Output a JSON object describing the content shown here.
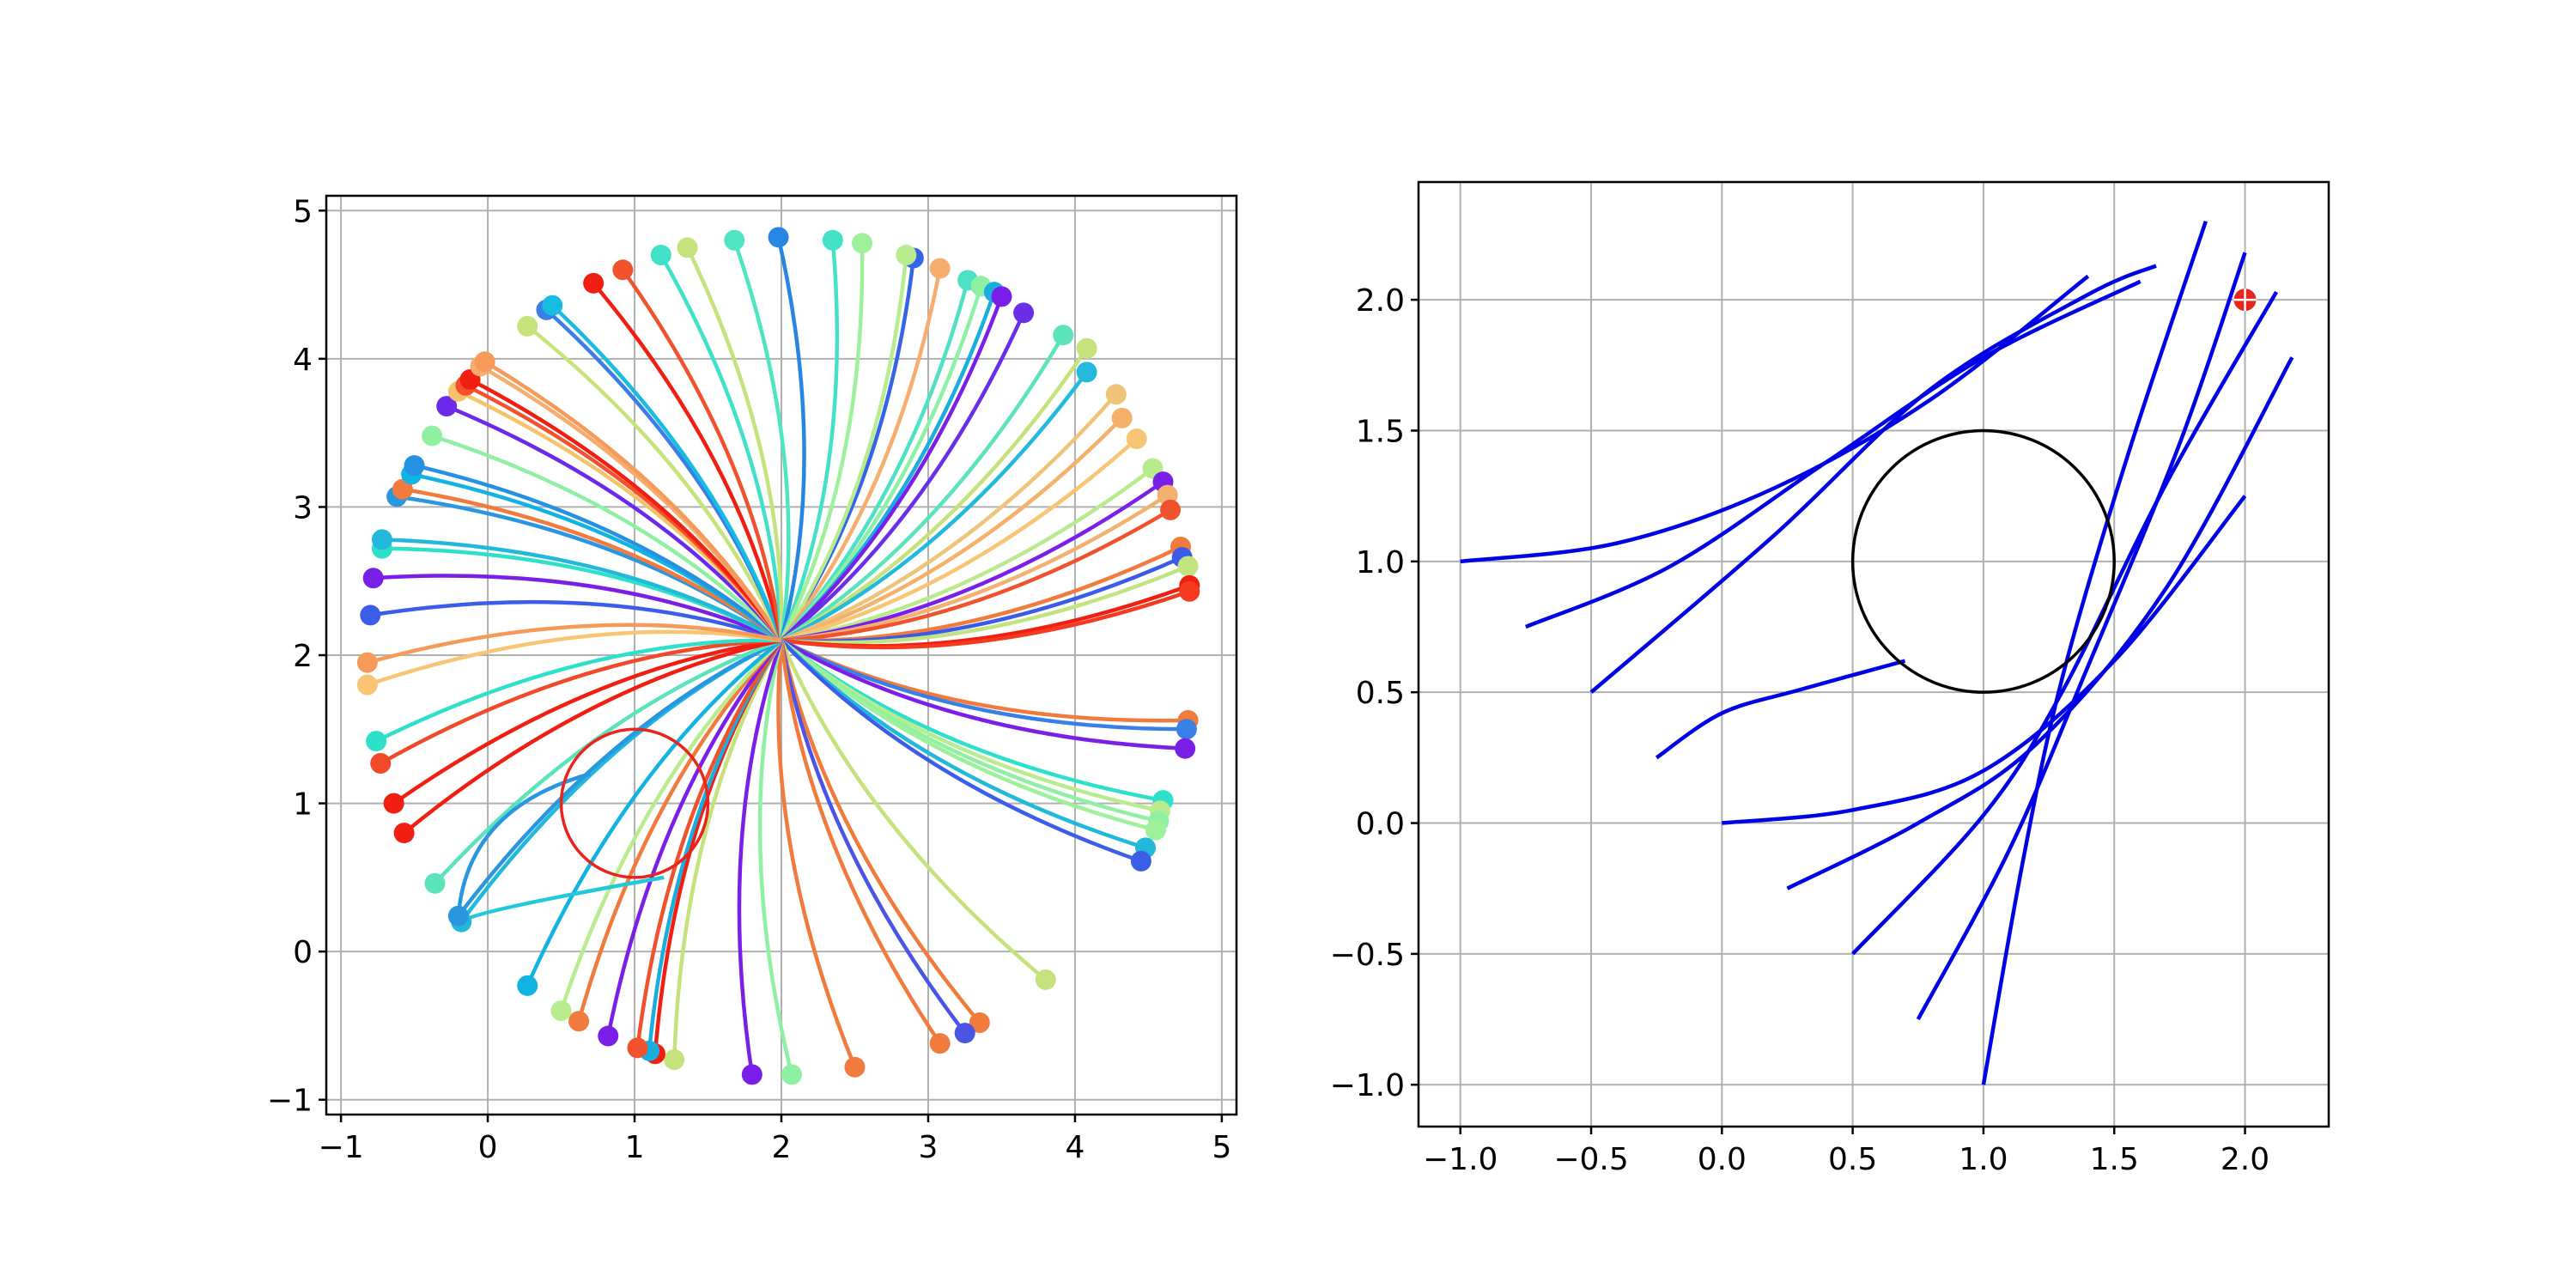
{
  "figure": {
    "background": "#ffffff"
  },
  "chart_data": [
    {
      "type": "line",
      "title": "",
      "xlabel": "",
      "ylabel": "",
      "xlim": [
        -1.1,
        5.1
      ],
      "ylim": [
        -1.1,
        5.1
      ],
      "x_ticks": [
        -1,
        0,
        1,
        2,
        3,
        4,
        5
      ],
      "x_tick_labels": [
        "−1",
        "0",
        "1",
        "2",
        "3",
        "4",
        "5"
      ],
      "y_ticks": [
        -1,
        0,
        1,
        2,
        3,
        4,
        5
      ],
      "y_tick_labels": [
        "−1",
        "0",
        "1",
        "2",
        "3",
        "4",
        "5"
      ],
      "grid": true,
      "colormap": "rainbow",
      "obstacle_circle": {
        "center": [
          1,
          1
        ],
        "radius": 0.5,
        "color": "#e8241c"
      },
      "convergence_point": [
        2,
        2.1
      ],
      "start_points": [
        {
          "x": -0.8,
          "y": 2.27,
          "color": "#3b5ee8"
        },
        {
          "x": -0.78,
          "y": 2.52,
          "color": "#7a1fe8"
        },
        {
          "x": -0.72,
          "y": 2.72,
          "color": "#2ee0c9"
        },
        {
          "x": -0.72,
          "y": 2.78,
          "color": "#22b8dc"
        },
        {
          "x": -0.62,
          "y": 3.07,
          "color": "#2b96e0"
        },
        {
          "x": -0.58,
          "y": 3.12,
          "color": "#f07b3d"
        },
        {
          "x": -0.52,
          "y": 3.22,
          "color": "#12b3e2"
        },
        {
          "x": -0.5,
          "y": 3.28,
          "color": "#2690e2"
        },
        {
          "x": -0.38,
          "y": 3.48,
          "color": "#8ff0a2"
        },
        {
          "x": -0.28,
          "y": 3.68,
          "color": "#6b2aea"
        },
        {
          "x": -0.2,
          "y": 3.78,
          "color": "#f5c36a"
        },
        {
          "x": -0.15,
          "y": 3.82,
          "color": "#f4522e"
        },
        {
          "x": -0.12,
          "y": 3.86,
          "color": "#f01f12"
        },
        {
          "x": -0.05,
          "y": 3.95,
          "color": "#f7ad6e"
        },
        {
          "x": -0.02,
          "y": 3.98,
          "color": "#f59a59"
        },
        {
          "x": 0.27,
          "y": 4.22,
          "color": "#c7e47c"
        },
        {
          "x": 0.4,
          "y": 4.33,
          "color": "#3a7fe6"
        },
        {
          "x": 0.44,
          "y": 4.36,
          "color": "#18bce0"
        },
        {
          "x": 0.72,
          "y": 4.51,
          "color": "#f01f12"
        },
        {
          "x": 0.92,
          "y": 4.6,
          "color": "#f0522e"
        },
        {
          "x": 1.18,
          "y": 4.7,
          "color": "#41e0c9"
        },
        {
          "x": 1.36,
          "y": 4.75,
          "color": "#c5e27d"
        },
        {
          "x": 1.68,
          "y": 4.8,
          "color": "#4ee5c0"
        },
        {
          "x": 1.98,
          "y": 4.82,
          "color": "#2786e3"
        },
        {
          "x": 2.35,
          "y": 4.8,
          "color": "#44e0c8"
        },
        {
          "x": 2.55,
          "y": 4.78,
          "color": "#9ef09a"
        },
        {
          "x": 2.9,
          "y": 4.68,
          "color": "#3465e8"
        },
        {
          "x": 2.85,
          "y": 4.7,
          "color": "#b8ec8e"
        },
        {
          "x": 3.08,
          "y": 4.61,
          "color": "#f7ad6e"
        },
        {
          "x": 3.27,
          "y": 4.53,
          "color": "#4fe1c5"
        },
        {
          "x": 3.36,
          "y": 4.49,
          "color": "#8ef0a5"
        },
        {
          "x": 3.45,
          "y": 4.45,
          "color": "#1aaedf"
        },
        {
          "x": 3.5,
          "y": 4.42,
          "color": "#7a1fe8"
        },
        {
          "x": 3.65,
          "y": 4.31,
          "color": "#6a2ee9"
        },
        {
          "x": 3.92,
          "y": 4.16,
          "color": "#5be3bc"
        },
        {
          "x": 4.08,
          "y": 4.07,
          "color": "#c5e27d"
        },
        {
          "x": 4.08,
          "y": 3.91,
          "color": "#22b9dc"
        },
        {
          "x": 4.28,
          "y": 3.76,
          "color": "#eec47a"
        },
        {
          "x": 4.32,
          "y": 3.6,
          "color": "#f5b06a"
        },
        {
          "x": 4.42,
          "y": 3.46,
          "color": "#f7c574"
        },
        {
          "x": 4.53,
          "y": 3.26,
          "color": "#b9ea8d"
        },
        {
          "x": 4.6,
          "y": 3.17,
          "color": "#7a1fe8"
        },
        {
          "x": 4.63,
          "y": 3.08,
          "color": "#f3b070"
        },
        {
          "x": 4.65,
          "y": 2.98,
          "color": "#f0522e"
        },
        {
          "x": 4.72,
          "y": 2.73,
          "color": "#f07b3d"
        },
        {
          "x": 4.73,
          "y": 2.66,
          "color": "#3a5ae8"
        },
        {
          "x": 4.77,
          "y": 2.6,
          "color": "#c2e480"
        },
        {
          "x": 4.78,
          "y": 2.47,
          "color": "#f01f12"
        },
        {
          "x": 4.78,
          "y": 2.43,
          "color": "#f53a20"
        },
        {
          "x": 4.77,
          "y": 1.56,
          "color": "#f07b3d"
        },
        {
          "x": 4.76,
          "y": 1.5,
          "color": "#3a7fe6"
        },
        {
          "x": 4.75,
          "y": 1.37,
          "color": "#7a1fe8"
        },
        {
          "x": 4.6,
          "y": 1.02,
          "color": "#2ee0c9"
        },
        {
          "x": 4.58,
          "y": 0.95,
          "color": "#b8ec8e"
        },
        {
          "x": 4.57,
          "y": 0.88,
          "color": "#8ff0a2"
        },
        {
          "x": 4.55,
          "y": 0.82,
          "color": "#9ef09a"
        },
        {
          "x": 4.48,
          "y": 0.7,
          "color": "#22b8dc"
        },
        {
          "x": 4.45,
          "y": 0.61,
          "color": "#3b5ee8"
        },
        {
          "x": 3.8,
          "y": -0.19,
          "color": "#c5e27d"
        },
        {
          "x": 3.35,
          "y": -0.48,
          "color": "#f07b3d"
        },
        {
          "x": 3.25,
          "y": -0.55,
          "color": "#4a55e6"
        },
        {
          "x": 3.08,
          "y": -0.62,
          "color": "#f07b3d"
        },
        {
          "x": 2.5,
          "y": -0.78,
          "color": "#f07b3d"
        },
        {
          "x": 2.07,
          "y": -0.83,
          "color": "#8ff0a2"
        },
        {
          "x": 1.8,
          "y": -0.83,
          "color": "#7a1fe8"
        },
        {
          "x": 1.27,
          "y": -0.73,
          "color": "#c5e27d"
        },
        {
          "x": 1.14,
          "y": -0.69,
          "color": "#f01f12"
        },
        {
          "x": 1.1,
          "y": -0.67,
          "color": "#1aaedf"
        },
        {
          "x": 1.02,
          "y": -0.65,
          "color": "#f0522e"
        },
        {
          "x": 0.82,
          "y": -0.57,
          "color": "#7a1fe8"
        },
        {
          "x": 0.62,
          "y": -0.47,
          "color": "#f07b3d"
        },
        {
          "x": 0.5,
          "y": -0.4,
          "color": "#b8ec8e"
        },
        {
          "x": 0.27,
          "y": -0.23,
          "color": "#12b3e2"
        },
        {
          "x": -0.18,
          "y": 0.2,
          "color": "#22b8dc"
        },
        {
          "x": -0.2,
          "y": 0.24,
          "color": "#2b96e0"
        },
        {
          "x": -0.36,
          "y": 0.46,
          "color": "#5be3bc"
        },
        {
          "x": -0.57,
          "y": 0.8,
          "color": "#f01f12"
        },
        {
          "x": -0.64,
          "y": 1.0,
          "color": "#f01f12"
        },
        {
          "x": -0.73,
          "y": 1.27,
          "color": "#f04a2a"
        },
        {
          "x": -0.76,
          "y": 1.42,
          "color": "#2ee0c9"
        },
        {
          "x": -0.82,
          "y": 1.8,
          "color": "#f7c574"
        },
        {
          "x": -0.82,
          "y": 1.95,
          "color": "#f59a59"
        }
      ],
      "hook_trajectories": [
        {
          "from": [
            -0.2,
            0.24
          ],
          "to": [
            0.7,
            1.2
          ],
          "color": "#2b96e0"
        },
        {
          "from": [
            -0.18,
            0.2
          ],
          "to": [
            1.2,
            0.5
          ],
          "color": "#22c8dc"
        }
      ]
    },
    {
      "type": "line",
      "title": "",
      "xlabel": "",
      "ylabel": "",
      "xlim": [
        -1.16,
        2.32
      ],
      "ylim": [
        -1.16,
        2.45
      ],
      "x_ticks": [
        -1.0,
        -0.5,
        0.0,
        0.5,
        1.0,
        1.5,
        2.0
      ],
      "x_tick_labels": [
        "−1.0",
        "−0.5",
        "0.0",
        "0.5",
        "1.0",
        "1.5",
        "2.0"
      ],
      "y_ticks": [
        -1.0,
        -0.5,
        0.0,
        0.5,
        1.0,
        1.5,
        2.0
      ],
      "y_tick_labels": [
        "−1.0",
        "−0.5",
        "0.0",
        "0.5",
        "1.0",
        "1.5",
        "2.0"
      ],
      "grid": true,
      "line_color": "#0000e6",
      "obstacle_circle": {
        "center": [
          1,
          1
        ],
        "radius": 0.5,
        "color": "#000000"
      },
      "goal_point": {
        "x": 2.0,
        "y": 2.0,
        "color": "#e8241c"
      },
      "series": [
        {
          "points": [
            [
              -1.0,
              1.0
            ],
            [
              -0.4,
              1.07
            ],
            [
              0.2,
              1.28
            ],
            [
              0.8,
              1.62
            ],
            [
              1.4,
              2.09
            ]
          ]
        },
        {
          "points": [
            [
              -0.75,
              0.75
            ],
            [
              -0.2,
              0.98
            ],
            [
              0.4,
              1.38
            ],
            [
              1.0,
              1.78
            ],
            [
              1.6,
              2.07
            ]
          ]
        },
        {
          "points": [
            [
              -0.5,
              0.5
            ],
            [
              0.2,
              1.1
            ],
            [
              0.8,
              1.66
            ],
            [
              1.4,
              2.02
            ],
            [
              1.66,
              2.13
            ]
          ]
        },
        {
          "points": [
            [
              -0.25,
              0.25
            ],
            [
              0.0,
              0.42
            ],
            [
              0.3,
              0.51
            ],
            [
              0.7,
              0.62
            ]
          ]
        },
        {
          "points": [
            [
              0.0,
              0.0
            ],
            [
              0.5,
              0.05
            ],
            [
              1.0,
              0.2
            ],
            [
              1.5,
              0.62
            ],
            [
              2.0,
              1.25
            ]
          ]
        },
        {
          "points": [
            [
              0.25,
              -0.25
            ],
            [
              0.75,
              0.0
            ],
            [
              1.2,
              0.3
            ],
            [
              1.7,
              0.9
            ],
            [
              2.18,
              1.78
            ]
          ]
        },
        {
          "points": [
            [
              0.5,
              -0.5
            ],
            [
              1.0,
              0.03
            ],
            [
              1.3,
              0.5
            ],
            [
              1.7,
              1.3
            ],
            [
              2.12,
              2.03
            ]
          ]
        },
        {
          "points": [
            [
              0.75,
              -0.75
            ],
            [
              1.1,
              -0.1
            ],
            [
              1.4,
              0.6
            ],
            [
              1.75,
              1.45
            ],
            [
              2.0,
              2.18
            ]
          ]
        },
        {
          "points": [
            [
              1.0,
              -1.0
            ],
            [
              1.15,
              -0.15
            ],
            [
              1.3,
              0.55
            ],
            [
              1.55,
              1.4
            ],
            [
              1.85,
              2.3
            ]
          ]
        }
      ]
    }
  ]
}
